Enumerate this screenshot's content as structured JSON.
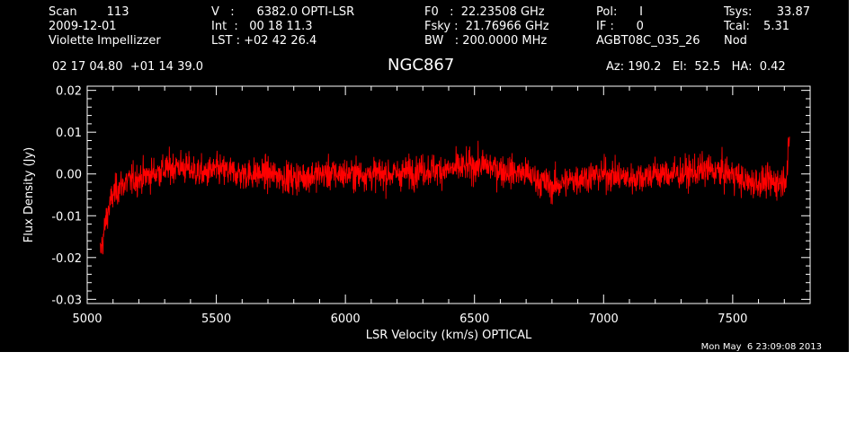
{
  "header": {
    "col1": [
      "Scan        113",
      "2009-12-01",
      "Violette Impellizzer"
    ],
    "col2": [
      "V   :      6382.0 OPTI-LSR",
      "Int  :   00 18 11.3",
      "LST : +02 42 26.4"
    ],
    "col3": [
      "F0   :  22.23508 GHz",
      "Fsky :  21.76966 GHz",
      "BW   : 200.0000 MHz"
    ],
    "col4": [
      "Pol:      I",
      "IF :      0",
      "AGBT08C_035_26"
    ],
    "col5_labels": [
      "Tsys:",
      "Tcal:",
      "Nod"
    ],
    "col5_values": [
      "33.87",
      "5.31",
      ""
    ],
    "coords": "02 17 04.80  +01 14 39.0",
    "source": "NGC867",
    "azelha": "Az: 190.2   El:  52.5   HA:  0.42"
  },
  "timestamp": "Mon May  6 23:09:08 2013",
  "colors": {
    "background": "#000000",
    "trace": "#ff0000",
    "axes": "#ffffff"
  },
  "chart_data": {
    "type": "line",
    "title": "NGC867",
    "xlabel": "LSR Velocity (km/s) OPTICAL",
    "ylabel": "Flux Density (Jy)",
    "xlim": [
      5000,
      7800
    ],
    "ylim": [
      -0.031,
      0.021
    ],
    "xticks": [
      5000,
      5500,
      6000,
      6500,
      7000,
      7500
    ],
    "xtick_labels": [
      "5000",
      "5500",
      "6000",
      "6500",
      "7000",
      "7500"
    ],
    "yticks": [
      0.02,
      0.01,
      0.0,
      -0.01,
      -0.02,
      -0.03
    ],
    "ytick_labels": [
      "0.02",
      "0.01",
      "0.00",
      "-0.01",
      "-0.02",
      "-0.03"
    ],
    "grid": false,
    "series": [
      {
        "color": "#ff0000",
        "x": [
          5050,
          5060,
          5070,
          5080,
          5090,
          5100,
          5125,
          5150,
          5200,
          5250,
          5300,
          5350,
          5400,
          5450,
          5500,
          5600,
          5700,
          5800,
          5900,
          6000,
          6100,
          6200,
          6300,
          6400,
          6500,
          6550,
          6600,
          6700,
          6800,
          6900,
          7000,
          7100,
          7200,
          7300,
          7400,
          7500,
          7550,
          7600,
          7650,
          7680,
          7700,
          7710,
          7720
        ],
        "y": [
          -0.019,
          -0.016,
          -0.012,
          -0.009,
          -0.007,
          -0.005,
          -0.003,
          -0.002,
          -0.001,
          0.0,
          0.001,
          0.002,
          0.001,
          0.0,
          0.001,
          0.0,
          0.0,
          -0.001,
          0.0,
          0.0,
          0.0,
          0.0,
          0.001,
          0.001,
          0.002,
          0.002,
          0.001,
          0.0,
          -0.003,
          -0.001,
          0.0,
          -0.001,
          0.0,
          0.0,
          0.001,
          0.0,
          -0.002,
          -0.002,
          -0.002,
          -0.002,
          -0.001,
          0.0,
          0.008
        ]
      }
    ]
  }
}
